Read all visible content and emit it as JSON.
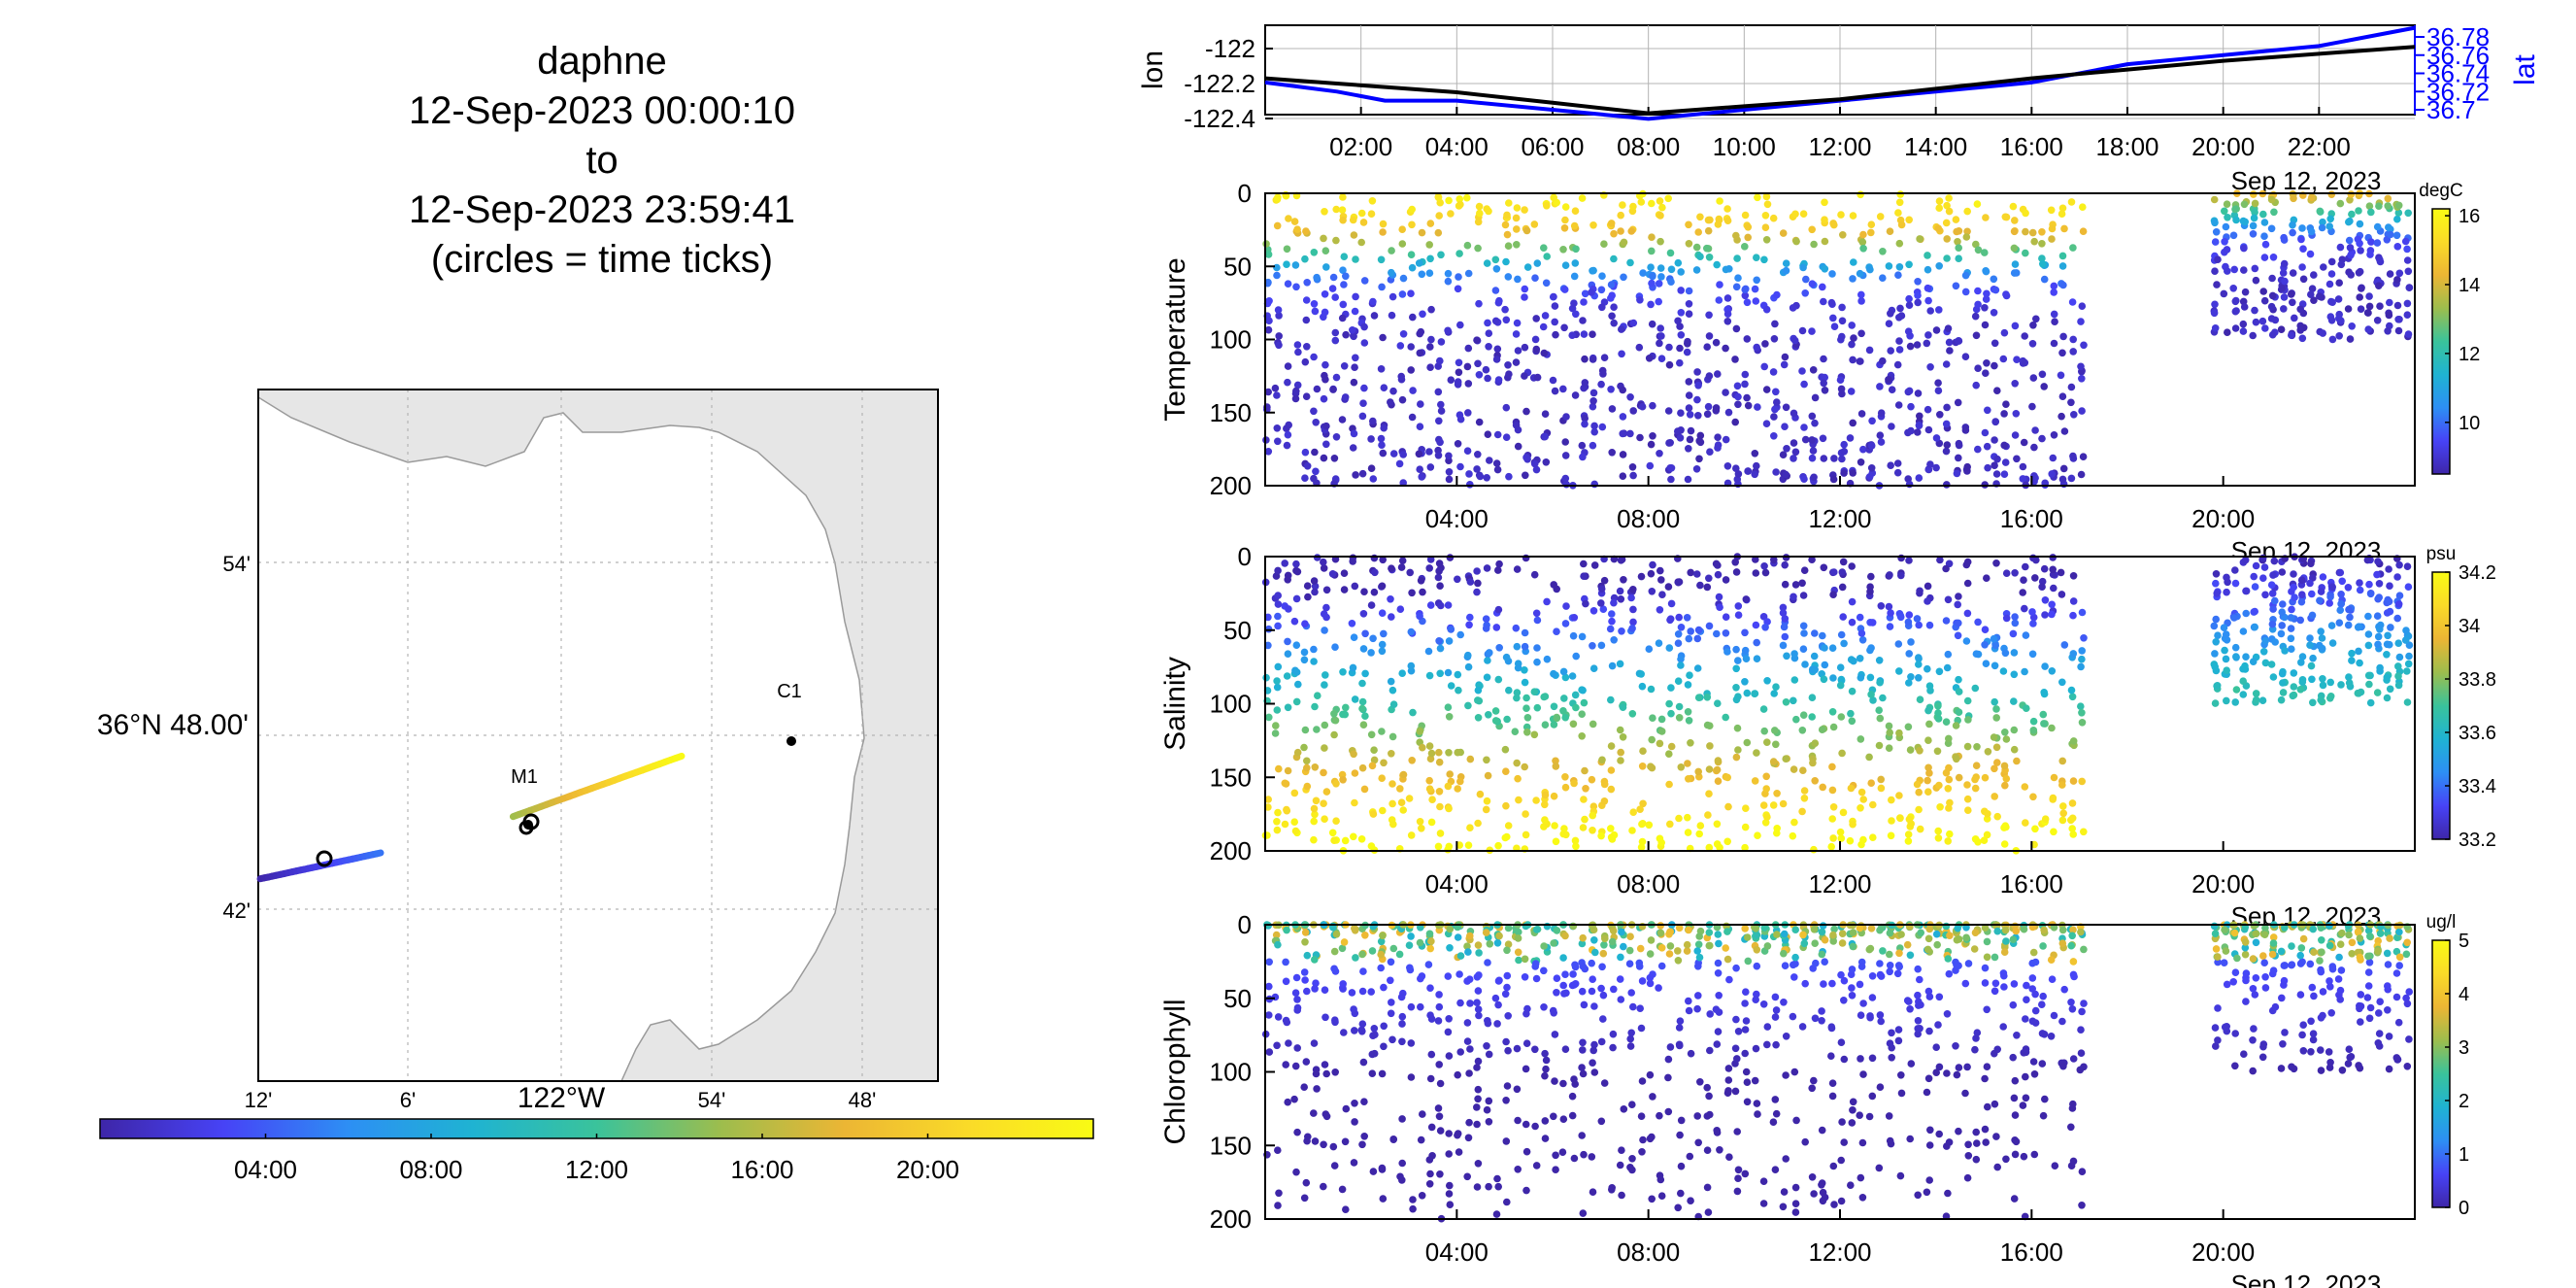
{
  "title": {
    "line1": "daphne",
    "line2": "12-Sep-2023 00:00:10",
    "line3": "to",
    "line4": "12-Sep-2023 23:59:41",
    "line5": "(circles = time ticks)"
  },
  "colors": {
    "lon_line": "#000000",
    "lat_line": "#0000ff",
    "land": "#e6e6e6",
    "coast": "#9a9a9a",
    "grid": "#b4b4b4"
  },
  "colormap": [
    "#3e26a8",
    "#4743f6",
    "#2d8ff4",
    "#1fb3d2",
    "#3ac39b",
    "#9dbd4d",
    "#ecb634",
    "#fadb28",
    "#f9fb14"
  ],
  "chart_data": [
    {
      "type": "line",
      "name": "position timeseries",
      "series": [
        {
          "name": "lon",
          "axis": "left",
          "x": [
            "00:00",
            "01:30",
            "02:30",
            "04:00",
            "06:00",
            "08:00",
            "10:00",
            "12:00",
            "14:00",
            "16:00",
            "18:00",
            "20:00",
            "22:00",
            "24:00"
          ],
          "values": [
            -122.17,
            -122.2,
            -122.22,
            -122.25,
            -122.31,
            -122.37,
            -122.33,
            -122.29,
            -122.23,
            -122.17,
            -122.12,
            -122.07,
            -122.03,
            -121.99
          ]
        },
        {
          "name": "lat",
          "axis": "right",
          "x": [
            "00:00",
            "01:30",
            "02:30",
            "04:00",
            "06:00",
            "08:00",
            "10:00",
            "12:00",
            "14:00",
            "16:00",
            "18:00",
            "20:00",
            "22:00",
            "24:00"
          ],
          "values": [
            36.73,
            36.72,
            36.71,
            36.71,
            36.7,
            36.69,
            36.7,
            36.71,
            36.72,
            36.73,
            36.75,
            36.76,
            36.77,
            36.79
          ]
        }
      ],
      "ylabel": "lon",
      "ylabel_right": "lat",
      "yticks_left": [
        "-122",
        "-122.2",
        "-122.4"
      ],
      "yticks_right": [
        "36.78",
        "36.76",
        "36.74",
        "36.72",
        "36.7"
      ],
      "xticks": [
        "02:00",
        "04:00",
        "06:00",
        "08:00",
        "10:00",
        "12:00",
        "14:00",
        "16:00",
        "18:00",
        "20:00",
        "22:00"
      ],
      "xdate": "Sep 12, 2023",
      "grid": true
    },
    {
      "type": "scatter",
      "name": "Temperature section",
      "ylabel": "Temperature",
      "ylim": [
        0,
        200
      ],
      "yticks": [
        "0",
        "50",
        "100",
        "150",
        "200"
      ],
      "xticks": [
        "04:00",
        "08:00",
        "12:00",
        "16:00",
        "20:00"
      ],
      "xdate": "Sep 12, 2023",
      "colorbar": {
        "label": "degC",
        "ticks": [
          "16",
          "14",
          "12",
          "10"
        ],
        "range": [
          8.5,
          16.2
        ]
      },
      "profiles_start": "00:00",
      "profiles_end": "24:00",
      "data_gap": [
        "17:10",
        "19:40"
      ],
      "surface_value": 15.8,
      "bottom_value": 9.0,
      "thermocline_depth": 40
    },
    {
      "type": "scatter",
      "name": "Salinity section",
      "ylabel": "Salinity",
      "ylim": [
        0,
        200
      ],
      "yticks": [
        "0",
        "50",
        "100",
        "150",
        "200"
      ],
      "xticks": [
        "04:00",
        "08:00",
        "12:00",
        "16:00",
        "20:00"
      ],
      "xdate": "Sep 12, 2023",
      "colorbar": {
        "label": "psu",
        "ticks": [
          "34.2",
          "34",
          "33.8",
          "33.6",
          "33.4",
          "33.2"
        ],
        "range": [
          33.2,
          34.2
        ]
      },
      "data_gap": [
        "17:10",
        "19:40"
      ],
      "surface_value": 33.25,
      "bottom_value": 34.15
    },
    {
      "type": "scatter",
      "name": "Chlorophyll section",
      "ylabel": "Chlorophyll",
      "ylim": [
        0,
        200
      ],
      "yticks": [
        "0",
        "50",
        "100",
        "150",
        "200"
      ],
      "xticks": [
        "04:00",
        "08:00",
        "12:00",
        "16:00",
        "20:00"
      ],
      "xdate": "Sep 12, 2023",
      "colorbar": {
        "label": "ug/l",
        "ticks": [
          "5",
          "4",
          "3",
          "2",
          "1",
          "0"
        ],
        "range": [
          0,
          5
        ]
      },
      "data_gap": [
        "17:10",
        "19:40"
      ],
      "surface_value": 2.5,
      "bottom_value": 0.1
    },
    {
      "type": "scatter",
      "name": "track map",
      "lat_ticks": [
        "54'",
        "36°N 48.00'",
        "42'"
      ],
      "lon_ticks": [
        "12'",
        "6'",
        "122°W",
        "54'",
        "48'"
      ],
      "stations": [
        {
          "name": "M1",
          "lat": 36.747,
          "lon": -122.022
        },
        {
          "name": "C1",
          "lat": 36.797,
          "lon": -121.847
        }
      ],
      "track_segments": [
        {
          "start": "00:00",
          "end": "05:00",
          "lon": [
            -122.2,
            -122.12
          ],
          "lat": [
            36.717,
            36.732
          ]
        },
        {
          "start": "15:00",
          "end": "24:00",
          "lon": [
            -122.032,
            -121.92
          ],
          "lat": [
            36.753,
            36.788
          ]
        }
      ],
      "colorbar_ticks": [
        "04:00",
        "08:00",
        "12:00",
        "16:00",
        "20:00"
      ]
    }
  ]
}
